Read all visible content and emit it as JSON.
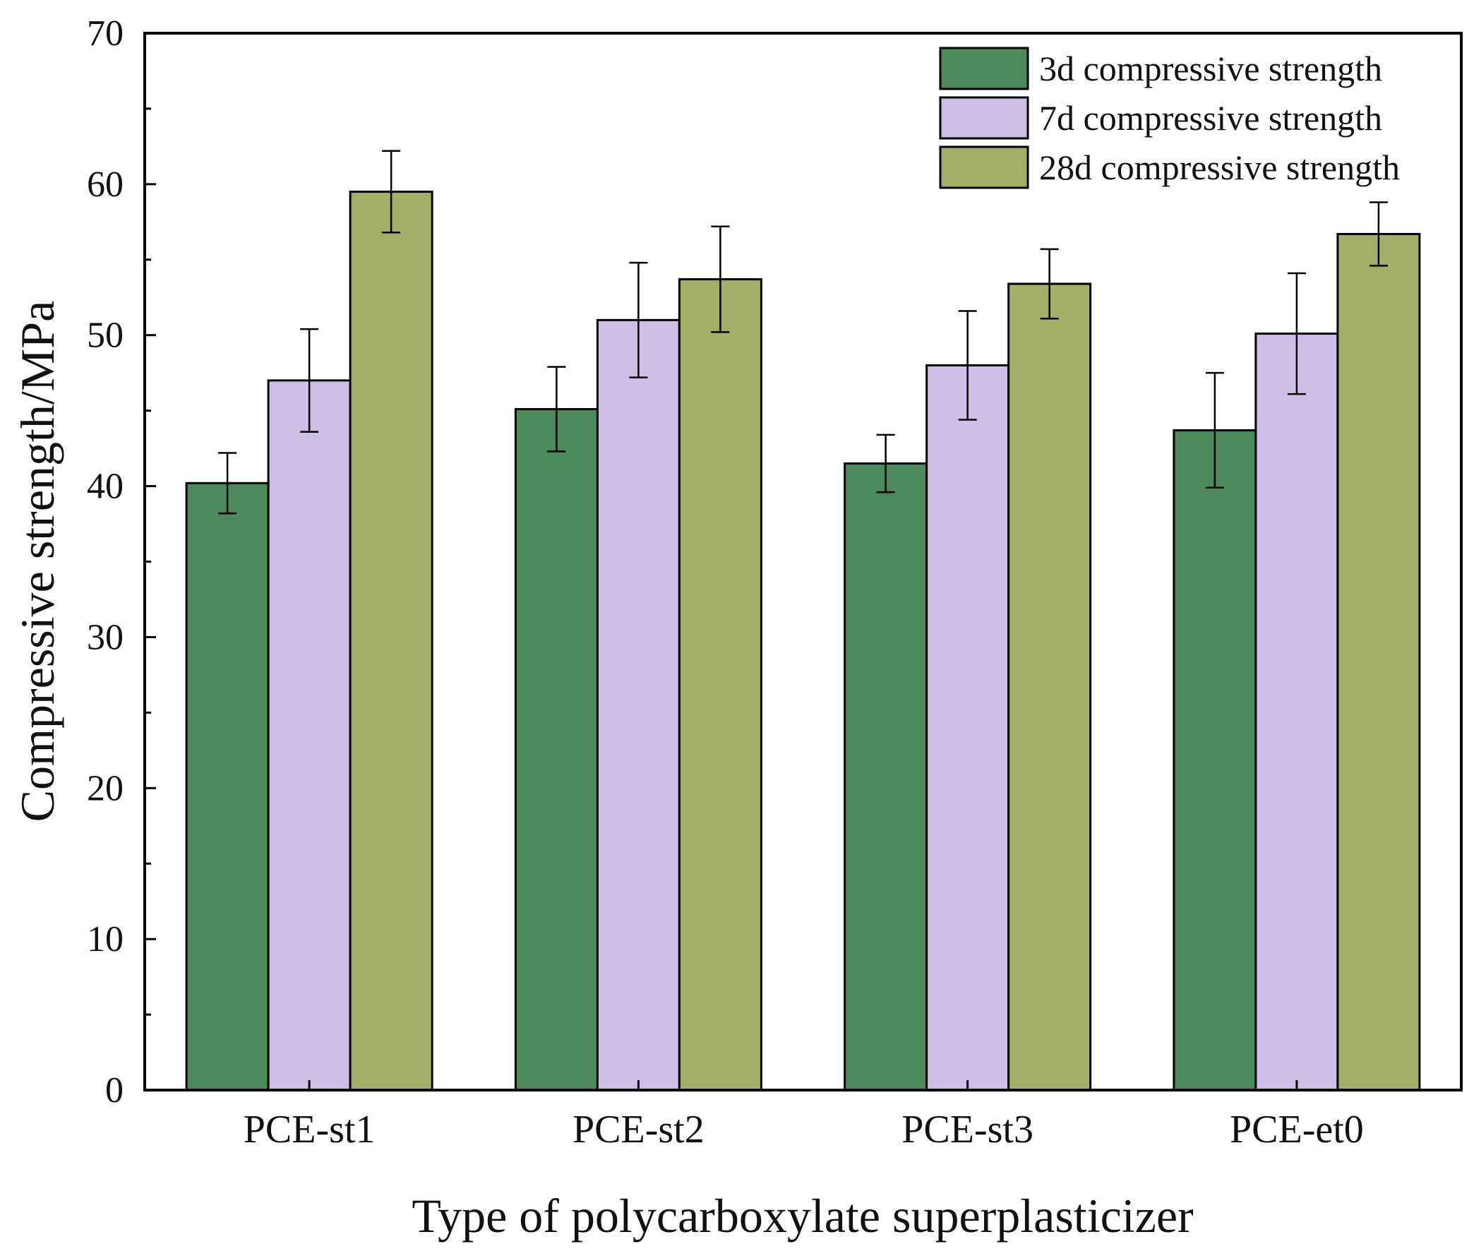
{
  "chart_data": {
    "type": "bar",
    "title": "",
    "xlabel": "Type of polycarboxylate superplasticizer",
    "ylabel": "Compressive strength/MPa",
    "ylim": [
      0,
      70
    ],
    "yticks": [
      0,
      10,
      20,
      30,
      40,
      50,
      60,
      70
    ],
    "grid": false,
    "legend_position": "top-right",
    "categories": [
      "PCE-st1",
      "PCE-st2",
      "PCE-st3",
      "PCE-et0"
    ],
    "series": [
      {
        "name": "3d compressive strength",
        "color": "#4c8a5c",
        "values": [
          40.2,
          45.1,
          41.5,
          43.7
        ],
        "errors": [
          2.0,
          2.8,
          1.9,
          3.8
        ]
      },
      {
        "name": "7d compressive strength",
        "color": "#cdbfe6",
        "values": [
          47.0,
          51.0,
          48.0,
          50.1
        ],
        "errors": [
          3.4,
          3.8,
          3.6,
          4.0
        ]
      },
      {
        "name": "28d compressive strength",
        "color": "#a2b067",
        "values": [
          59.5,
          53.7,
          53.4,
          56.7
        ],
        "errors": [
          2.7,
          3.5,
          2.3,
          2.1
        ]
      }
    ]
  }
}
